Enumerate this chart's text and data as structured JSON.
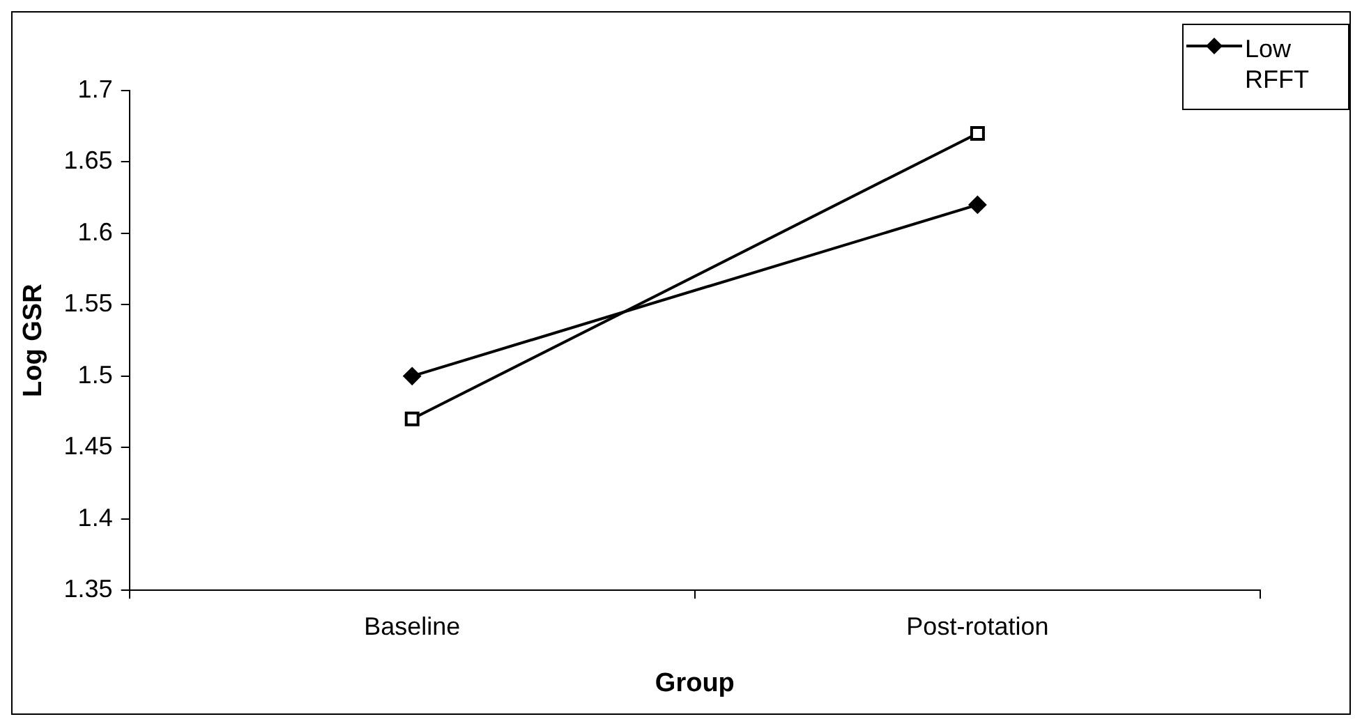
{
  "chart_data": {
    "type": "line",
    "xlabel": "Group",
    "ylabel": "Log GSR",
    "categories": [
      "Baseline",
      "Post-rotation"
    ],
    "series": [
      {
        "name": "Low RFFT",
        "color": "#000000",
        "marker": "diamond",
        "values": [
          1.5,
          1.62
        ]
      },
      {
        "color": "#000000",
        "marker": "square",
        "values": [
          1.47,
          1.67
        ]
      }
    ],
    "ylim": [
      1.35,
      1.7
    ],
    "yticks": [
      1.35,
      1.4,
      1.45,
      1.5,
      1.55,
      1.6,
      1.65,
      1.7
    ],
    "grid": false,
    "legend": "top right",
    "line_style": "solid"
  }
}
